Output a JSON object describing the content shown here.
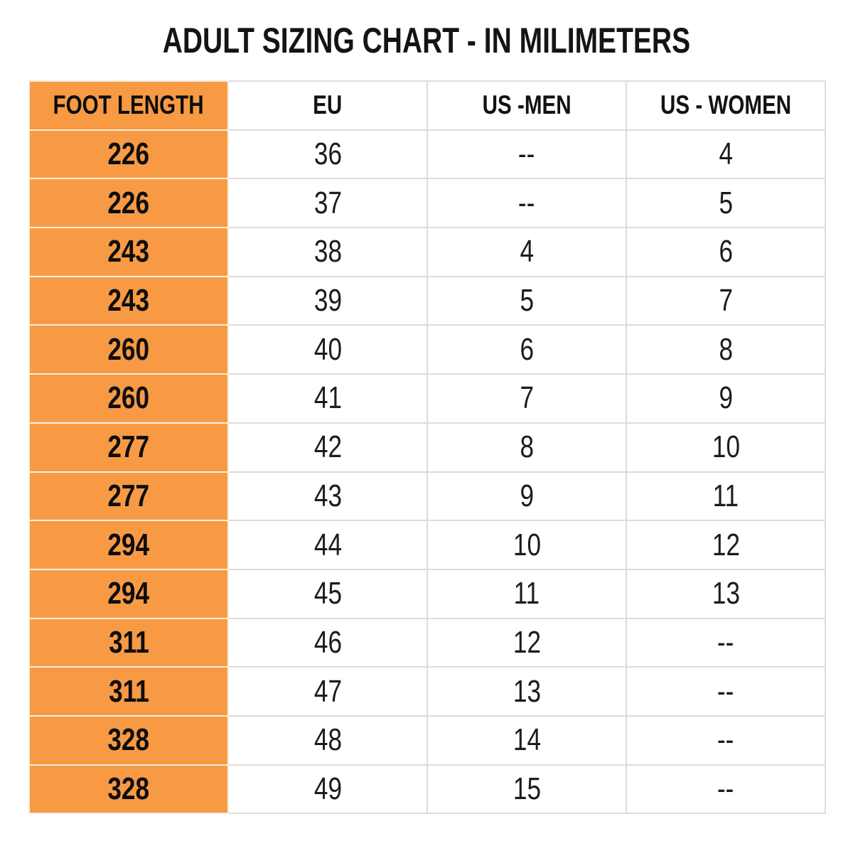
{
  "page_title": "ADULT SIZING CHART - IN MILIMETERS",
  "colors": {
    "header_orange": "#F89A44",
    "grid_line": "#DCDCDC",
    "orange_grid_line": "#F6EFE4",
    "text": "#000000"
  },
  "chart_data": {
    "type": "table",
    "title": "ADULT SIZING CHART - IN MILIMETERS",
    "columns": [
      "FOOT LENGTH",
      "EU",
      "US -MEN",
      "US - WOMEN"
    ],
    "rows": [
      [
        "226",
        "36",
        "--",
        "4"
      ],
      [
        "226",
        "37",
        "--",
        "5"
      ],
      [
        "243",
        "38",
        "4",
        "6"
      ],
      [
        "243",
        "39",
        "5",
        "7"
      ],
      [
        "260",
        "40",
        "6",
        "8"
      ],
      [
        "260",
        "41",
        "7",
        "9"
      ],
      [
        "277",
        "42",
        "8",
        "10"
      ],
      [
        "277",
        "43",
        "9",
        "11"
      ],
      [
        "294",
        "44",
        "10",
        "12"
      ],
      [
        "294",
        "45",
        "11",
        "13"
      ],
      [
        "311",
        "46",
        "12",
        "--"
      ],
      [
        "311",
        "47",
        "13",
        "--"
      ],
      [
        "328",
        "48",
        "14",
        "--"
      ],
      [
        "328",
        "49",
        "15",
        "--"
      ]
    ],
    "layout": {
      "first_column_highlight": "orange",
      "gridlines": true,
      "header_row_bold": true
    }
  }
}
